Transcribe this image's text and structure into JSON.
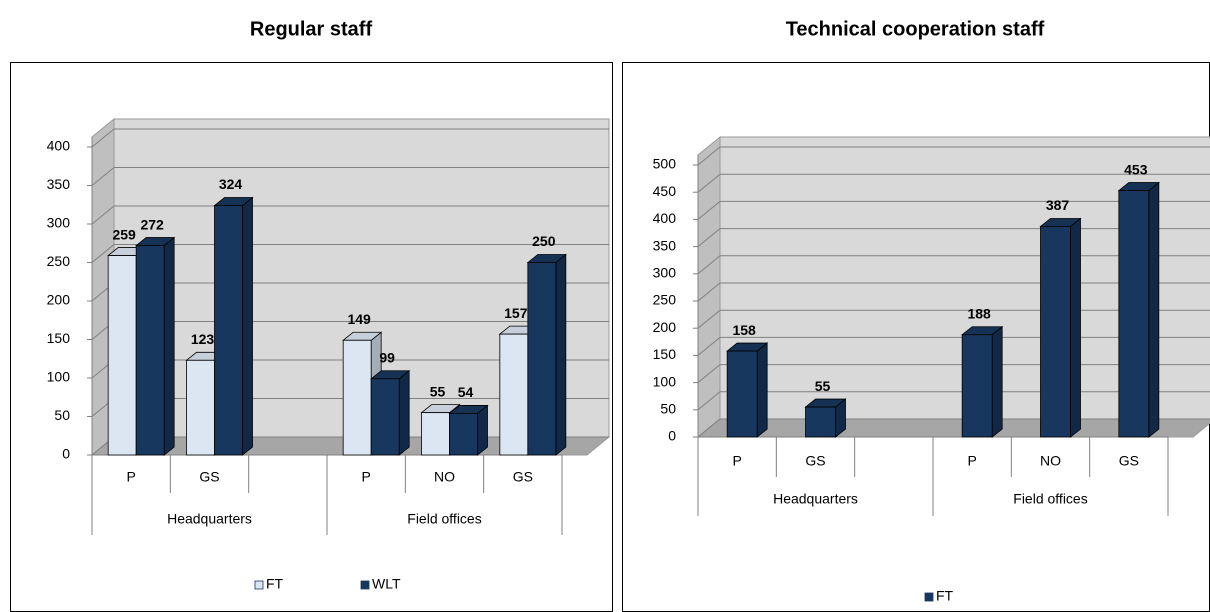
{
  "chart_data": [
    {
      "type": "bar",
      "title": "Regular staff",
      "groups": [
        {
          "name": "Headquarters",
          "categories": [
            "P",
            "GS",
            null
          ]
        },
        {
          "name": "Field offices",
          "categories": [
            "P",
            "NO",
            "GS"
          ]
        }
      ],
      "series": [
        {
          "name": "FT",
          "color": "#dce6f2",
          "values": [
            259,
            123,
            null,
            149,
            55,
            157
          ]
        },
        {
          "name": "WLT",
          "color": "#17375e",
          "values": [
            272,
            324,
            null,
            99,
            54,
            250
          ]
        }
      ],
      "ylim": [
        0,
        400
      ],
      "yticks": [
        0,
        50,
        100,
        150,
        200,
        250,
        300,
        350,
        400
      ],
      "grid": true,
      "legend": "bottom"
    },
    {
      "type": "bar",
      "title": "Technical cooperation staff",
      "groups": [
        {
          "name": "Headquarters",
          "categories": [
            "P",
            "GS",
            null
          ]
        },
        {
          "name": "Field offices",
          "categories": [
            "P",
            "NO",
            "GS"
          ]
        }
      ],
      "series": [
        {
          "name": "FT",
          "color": "#17375e",
          "values": [
            158,
            55,
            null,
            188,
            387,
            453
          ]
        }
      ],
      "ylim": [
        0,
        500
      ],
      "yticks": [
        0,
        50,
        100,
        150,
        200,
        250,
        300,
        350,
        400,
        450,
        500
      ],
      "grid": true,
      "legend": "bottom"
    }
  ]
}
